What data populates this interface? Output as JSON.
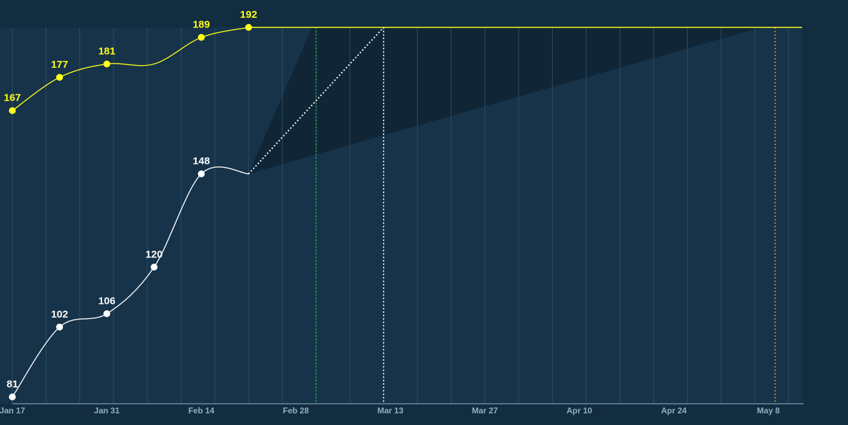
{
  "chart_data": {
    "type": "line",
    "x_tick_labels": [
      "Jan 17",
      "Jan 31",
      "Feb 14",
      "Feb 28",
      "Mar 13",
      "Mar 27",
      "Apr 10",
      "Apr 24",
      "May 8"
    ],
    "x_range": [
      "2023-01-17",
      "2023-05-14"
    ],
    "y_range": [
      81,
      192
    ],
    "grid_vertical": true,
    "colors": {
      "background": "#122c40",
      "plot_background": "#16334a",
      "grid": "#2c4d63",
      "axis": "#6a8ba0",
      "scope_series": "#ffff1a",
      "completed_series": "#ffffff",
      "forecast_cone": "#0f2434",
      "marker_green": "#2fa24b",
      "marker_white": "#ffffff",
      "marker_orange": "#f0961e"
    },
    "series": [
      {
        "key": "scope",
        "color_key": "scope_series",
        "points": [
          {
            "date": "2023-01-17",
            "value": 167,
            "label": "167"
          },
          {
            "date": "2023-01-24",
            "value": 177,
            "label": "177"
          },
          {
            "date": "2023-01-31",
            "value": 181,
            "label": "181"
          },
          {
            "date": "2023-02-07",
            "value": 181
          },
          {
            "date": "2023-02-14",
            "value": 189,
            "label": "189"
          },
          {
            "date": "2023-02-21",
            "value": 192,
            "label": "192"
          }
        ],
        "flat_until": "2023-05-14"
      },
      {
        "key": "completed",
        "color_key": "completed_series",
        "points": [
          {
            "date": "2023-01-17",
            "value": 81,
            "label": "81"
          },
          {
            "date": "2023-01-24",
            "value": 102,
            "label": "102"
          },
          {
            "date": "2023-01-31",
            "value": 106,
            "label": "106"
          },
          {
            "date": "2023-02-07",
            "value": 120,
            "label": "120"
          },
          {
            "date": "2023-02-14",
            "value": 148,
            "label": "148"
          },
          {
            "date": "2023-02-21",
            "value": 148
          }
        ]
      }
    ],
    "forecast": {
      "start": {
        "date": "2023-02-21",
        "value": 148
      },
      "optimistic_date": "2023-03-03",
      "likely_date": "2023-03-13",
      "pessimistic_date": "2023-05-10",
      "target_value": 192
    }
  }
}
